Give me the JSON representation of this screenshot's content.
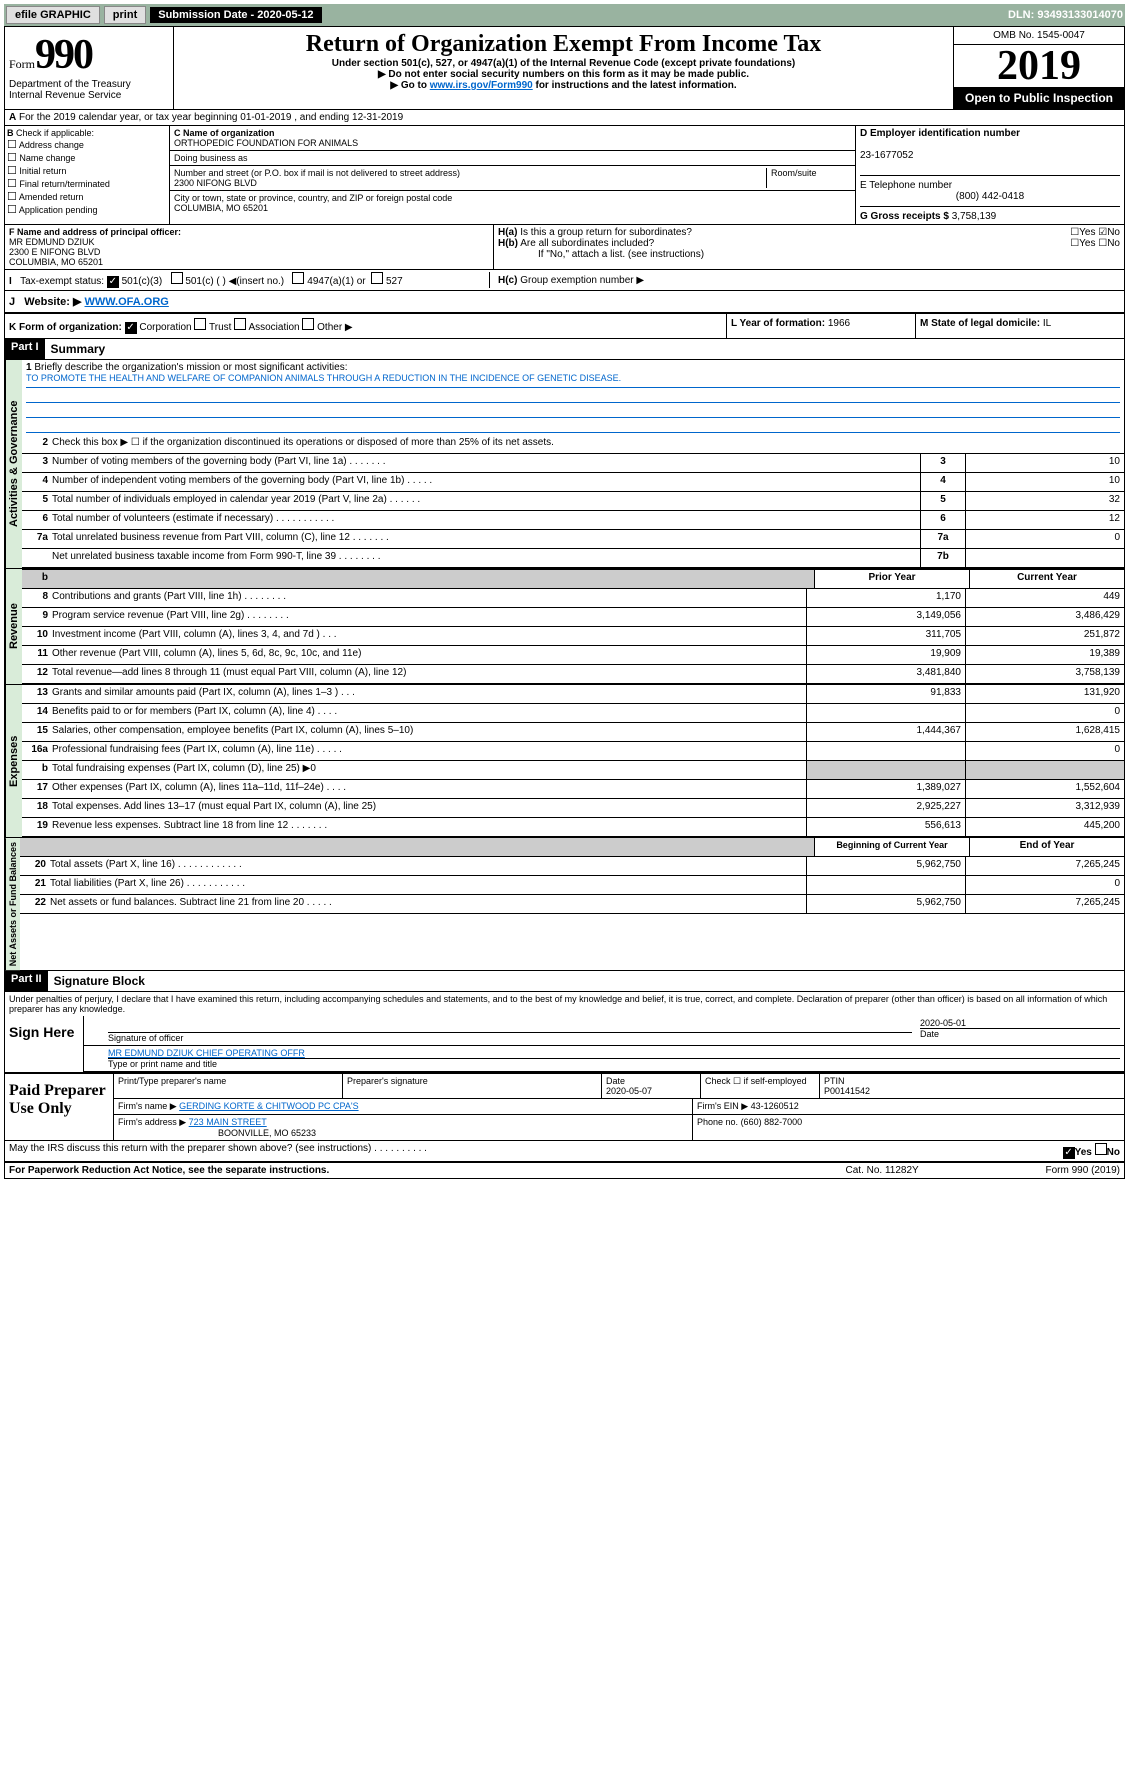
{
  "toolbar": {
    "efile": "efile GRAPHIC",
    "print": "print",
    "sub_label": "Submission Date - 2020-05-12",
    "dln": "DLN: 93493133014070"
  },
  "header": {
    "form_word": "Form",
    "form_num": "990",
    "omb": "OMB No. 1545-0047",
    "year": "2019",
    "title": "Return of Organization Exempt From Income Tax",
    "sub1": "Under section 501(c), 527, or 4947(a)(1) of the Internal Revenue Code (except private foundations)",
    "sub2": "▶ Do not enter social security numbers on this form as it may be made public.",
    "sub3_pre": "▶ Go to ",
    "sub3_link": "www.irs.gov/Form990",
    "sub3_post": " for instructions and the latest information.",
    "dept1": "Department of the Treasury",
    "dept2": "Internal Revenue Service",
    "open": "Open to Public Inspection"
  },
  "row_a": {
    "text": "For the 2019 calendar year, or tax year beginning 01-01-2019   , and ending 12-31-2019",
    "prefix": "A"
  },
  "b": {
    "label": "Check if applicable:",
    "opts": [
      "Address change",
      "Name change",
      "Initial return",
      "Final return/terminated",
      "Amended return",
      "Application pending"
    ]
  },
  "c": {
    "name_label": "C Name of organization",
    "name": "ORTHOPEDIC FOUNDATION FOR ANIMALS",
    "dba": "Doing business as",
    "addr_label": "Number and street (or P.O. box if mail is not delivered to street address)",
    "room": "Room/suite",
    "addr": "2300 NIFONG BLVD",
    "city_label": "City or town, state or province, country, and ZIP or foreign postal code",
    "city": "COLUMBIA, MO  65201"
  },
  "d": {
    "ein_label": "D Employer identification number",
    "ein": "23-1677052"
  },
  "e": {
    "tel_label": "E Telephone number",
    "tel": "(800) 442-0418"
  },
  "g": {
    "label": "G Gross receipts $",
    "val": "3,758,139"
  },
  "f": {
    "label": "F  Name and address of principal officer:",
    "name": "MR EDMUND DZIUK",
    "addr": "2300 E NIFONG BLVD",
    "city": "COLUMBIA, MO  65201"
  },
  "h": {
    "a": "Is this a group return for subordinates?",
    "b": "Are all subordinates included?",
    "b2": "If \"No,\" attach a list. (see instructions)",
    "c": "Group exemption number ▶",
    "ha": "H(a)",
    "hb": "H(b)",
    "hc": "H(c)"
  },
  "i": {
    "label": "Tax-exempt status:",
    "opt1": "501(c)(3)",
    "opt2": "501(c) (  ) ◀(insert no.)",
    "opt3": "4947(a)(1) or",
    "opt4": "527",
    "prefix": "I"
  },
  "j": {
    "label": "Website: ▶",
    "val": "WWW.OFA.ORG",
    "prefix": "J"
  },
  "k": {
    "label": "K Form of organization:",
    "opts": [
      "Corporation",
      "Trust",
      "Association",
      "Other ▶"
    ]
  },
  "l": {
    "label": "L Year of formation:",
    "val": "1966"
  },
  "m": {
    "label": "M State of legal domicile:",
    "val": "IL"
  },
  "part1": {
    "hdr": "Part I",
    "title": "Summary"
  },
  "vlabels": {
    "ag": "Activities & Governance",
    "rev": "Revenue",
    "exp": "Expenses",
    "na": "Net Assets or Fund Balances"
  },
  "mission": {
    "num": "1",
    "label": "Briefly describe the organization's mission or most significant activities:",
    "text": "TO PROMOTE THE HEALTH AND WELFARE OF COMPANION ANIMALS THROUGH A REDUCTION IN THE INCIDENCE OF GENETIC DISEASE."
  },
  "line2": {
    "num": "2",
    "text": "Check this box ▶ ☐  if the organization discontinued its operations or disposed of more than 25% of its net assets."
  },
  "lines": [
    {
      "n": "3",
      "t": "Number of voting members of the governing body (Part VI, line 1a)  .    .    .    .    .    .    .",
      "b": "3",
      "v": "10"
    },
    {
      "n": "4",
      "t": "Number of independent voting members of the governing body (Part VI, line 1b)  .    .    .    .    .",
      "b": "4",
      "v": "10"
    },
    {
      "n": "5",
      "t": "Total number of individuals employed in calendar year 2019 (Part V, line 2a)  .    .    .    .    .    .",
      "b": "5",
      "v": "32"
    },
    {
      "n": "6",
      "t": "Total number of volunteers (estimate if necessary)  .    .    .    .    .    .    .    .    .    .    .",
      "b": "6",
      "v": "12"
    },
    {
      "n": "7a",
      "t": "Total unrelated business revenue from Part VIII, column (C), line 12  .    .    .    .    .    .    .",
      "b": "7a",
      "v": "0"
    },
    {
      "n": "",
      "t": "Net unrelated business taxable income from Form 990-T, line 39  .    .    .    .    .    .    .    .",
      "b": "7b",
      "v": ""
    }
  ],
  "cols": {
    "py": "Prior Year",
    "cy": "Current Year",
    "boy": "Beginning of Current Year",
    "eoy": "End of Year"
  },
  "rev": [
    {
      "n": "8",
      "t": "Contributions and grants (Part VIII, line 1h)  .    .    .    .    .    .    .    .",
      "p": "1,170",
      "c": "449"
    },
    {
      "n": "9",
      "t": "Program service revenue (Part VIII, line 2g)  .    .    .    .    .    .    .    .",
      "p": "3,149,056",
      "c": "3,486,429"
    },
    {
      "n": "10",
      "t": "Investment income (Part VIII, column (A), lines 3, 4, and 7d )  .    .    .",
      "p": "311,705",
      "c": "251,872"
    },
    {
      "n": "11",
      "t": "Other revenue (Part VIII, column (A), lines 5, 6d, 8c, 9c, 10c, and 11e)",
      "p": "19,909",
      "c": "19,389"
    },
    {
      "n": "12",
      "t": "Total revenue—add lines 8 through 11 (must equal Part VIII, column (A), line 12)",
      "p": "3,481,840",
      "c": "3,758,139"
    }
  ],
  "exp": [
    {
      "n": "13",
      "t": "Grants and similar amounts paid (Part IX, column (A), lines 1–3 )  .    .    .",
      "p": "91,833",
      "c": "131,920"
    },
    {
      "n": "14",
      "t": "Benefits paid to or for members (Part IX, column (A), line 4)  .    .    .    .",
      "p": "",
      "c": "0"
    },
    {
      "n": "15",
      "t": "Salaries, other compensation, employee benefits (Part IX, column (A), lines 5–10)",
      "p": "1,444,367",
      "c": "1,628,415"
    },
    {
      "n": "16a",
      "t": "Professional fundraising fees (Part IX, column (A), line 11e)  .    .    .    .    .",
      "p": "",
      "c": "0"
    },
    {
      "n": "b",
      "t": "Total fundraising expenses (Part IX, column (D), line 25) ▶0",
      "p": "grey",
      "c": "grey"
    },
    {
      "n": "17",
      "t": "Other expenses (Part IX, column (A), lines 11a–11d, 11f–24e)  .    .    .    .",
      "p": "1,389,027",
      "c": "1,552,604"
    },
    {
      "n": "18",
      "t": "Total expenses. Add lines 13–17 (must equal Part IX, column (A), line 25)",
      "p": "2,925,227",
      "c": "3,312,939"
    },
    {
      "n": "19",
      "t": "Revenue less expenses. Subtract line 18 from line 12  .    .    .    .    .    .    .",
      "p": "556,613",
      "c": "445,200"
    }
  ],
  "na": [
    {
      "n": "20",
      "t": "Total assets (Part X, line 16)  .    .    .    .    .    .    .    .    .    .    .    .",
      "p": "5,962,750",
      "c": "7,265,245"
    },
    {
      "n": "21",
      "t": "Total liabilities (Part X, line 26)  .    .    .    .    .    .    .    .    .    .    .",
      "p": "",
      "c": "0"
    },
    {
      "n": "22",
      "t": "Net assets or fund balances. Subtract line 21 from line 20  .    .    .    .    .",
      "p": "5,962,750",
      "c": "7,265,245"
    }
  ],
  "part2": {
    "hdr": "Part II",
    "title": "Signature Block"
  },
  "sig": {
    "perjury": "Under penalties of perjury, I declare that I have examined this return, including accompanying schedules and statements, and to the best of my knowledge and belief, it is true, correct, and complete. Declaration of preparer (other than officer) is based on all information of which preparer has any knowledge.",
    "sign": "Sign Here",
    "sig_label": "Signature of officer",
    "date": "2020-05-01",
    "date_label": "Date",
    "name": "MR EDMUND DZIUK  CHIEF OPERATING OFFR",
    "name_label": "Type or print name and title"
  },
  "paid": {
    "label": "Paid Preparer Use Only",
    "h1": "Print/Type preparer's name",
    "h2": "Preparer's signature",
    "h3": "Date",
    "h3v": "2020-05-07",
    "h4": "Check ☐ if self-employed",
    "h5": "PTIN",
    "h5v": "P00141542",
    "firm": "Firm's name    ▶",
    "firmv": "GERDING KORTE & CHITWOOD PC CPA'S",
    "ein": "Firm's EIN ▶",
    "einv": "43-1260512",
    "addr": "Firm's address ▶",
    "addrv": "723 MAIN STREET",
    "addr2": "BOONVILLE, MO  65233",
    "phone": "Phone no.",
    "phonev": "(660) 882-7000"
  },
  "discuss": {
    "text": "May the IRS discuss this return with the preparer shown above? (see instructions)   .    .    .    .    .    .    .    .    .    .",
    "yes": "Yes",
    "no": "No"
  },
  "footer": {
    "pra": "For Paperwork Reduction Act Notice, see the separate instructions.",
    "cat": "Cat. No. 11282Y",
    "form": "Form 990 (2019)"
  }
}
